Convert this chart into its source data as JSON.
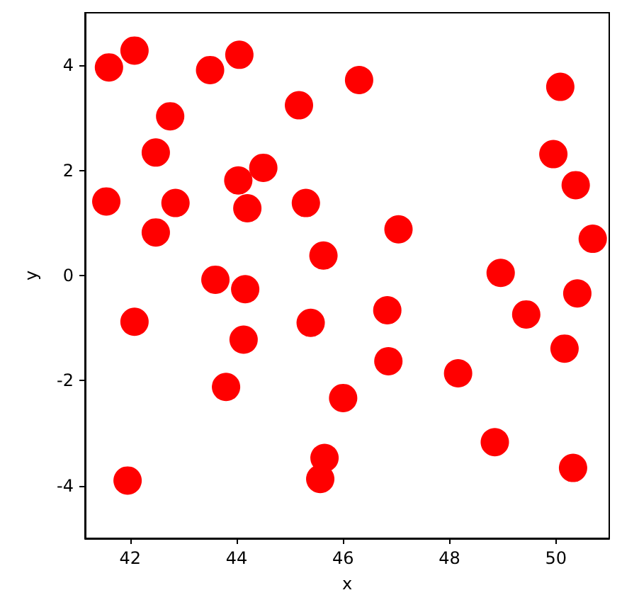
{
  "chart_data": {
    "type": "scatter",
    "xlabel": "x",
    "ylabel": "y",
    "x": [
      41.6,
      42.08,
      41.55,
      42.48,
      42.75,
      42.48,
      42.85,
      42.08,
      41.95,
      43.5,
      44.05,
      44.03,
      44.5,
      44.2,
      43.6,
      44.16,
      44.13,
      43.8,
      45.17,
      46.3,
      45.3,
      45.63,
      45.39,
      46.0,
      45.65,
      45.57,
      47.04,
      46.83,
      46.85,
      48.16,
      48.96,
      49.44,
      48.85,
      50.08,
      49.95,
      50.37,
      50.69,
      50.4,
      50.16,
      50.32
    ],
    "series": [
      {
        "color": "#ff0000",
        "values": [
          3.96,
          4.28,
          1.41,
          2.34,
          3.03,
          0.82,
          1.38,
          -0.88,
          -3.9,
          3.91,
          4.2,
          1.81,
          2.05,
          1.28,
          -0.08,
          -0.26,
          -1.22,
          -2.12,
          3.24,
          3.72,
          1.38,
          0.38,
          -0.9,
          -2.33,
          -3.47,
          -3.87,
          0.88,
          -0.66,
          -1.63,
          -1.86,
          0.05,
          -0.74,
          -3.17,
          3.59,
          2.31,
          1.72,
          0.7,
          -0.34,
          -1.39,
          -3.66
        ]
      }
    ],
    "marker": "circle",
    "grid": false,
    "xlim": [
      41.15,
      51.0
    ],
    "xticks": [
      42,
      44,
      46,
      48,
      50
    ],
    "ylim": [
      -5,
      5
    ],
    "yticks": [
      -4,
      -2,
      0,
      2,
      4
    ]
  }
}
